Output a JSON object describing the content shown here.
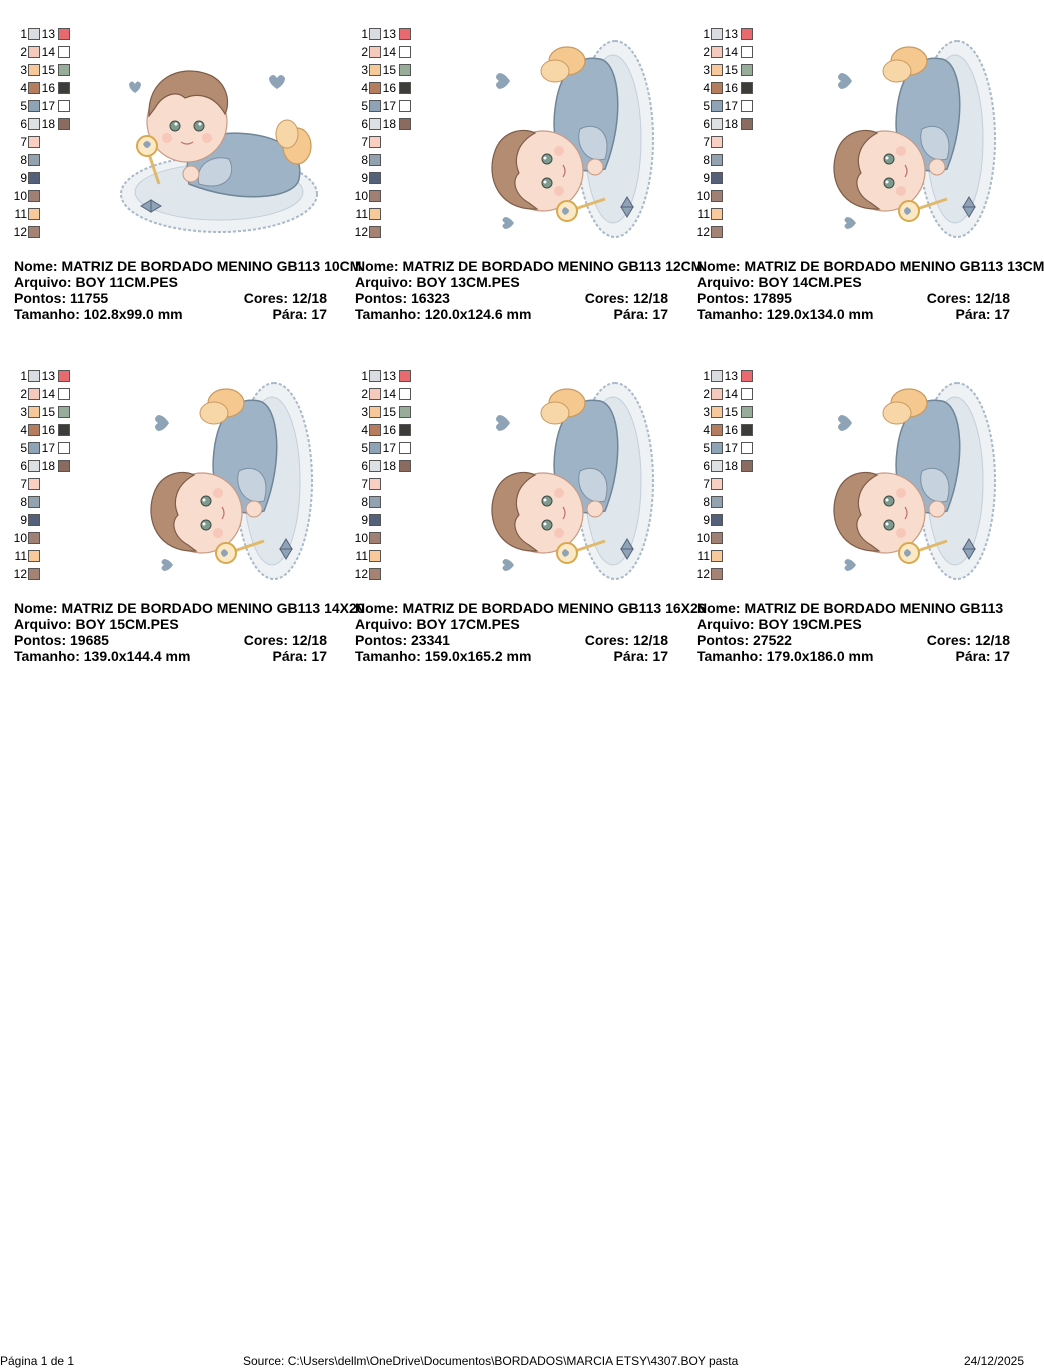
{
  "palette": {
    "labels": [
      "1",
      "2",
      "3",
      "4",
      "5",
      "6",
      "7",
      "8",
      "9",
      "10",
      "11",
      "12",
      "13",
      "14",
      "15",
      "16",
      "17",
      "18"
    ],
    "colors": [
      "#d9dde2",
      "#f6c9bd",
      "#f7c99a",
      "#b57d5d",
      "#8ea3b6",
      "#dde1e4",
      "#f9cfc4",
      "#93a2b1",
      "#55617a",
      "#a08074",
      "#f8c99a",
      "#a68274",
      "#e86a6e",
      "#ffffff",
      "#97ac99",
      "#3d3c38",
      "#ffffff",
      "#8b6a5f"
    ]
  },
  "labels": {
    "name": "Nome:",
    "file": "Arquivo:",
    "stitches": "Pontos:",
    "colors": "Cores:",
    "size": "Tamanho:",
    "stops": "Pára:"
  },
  "designs": [
    {
      "name": "MATRIZ DE BORDADO MENINO GB113 10CM",
      "file": "BOY 11CM.PES",
      "stitches": "11755",
      "colors": "12/18",
      "size": "102.8x99.0 mm",
      "stops": "17",
      "orientation": "landscape"
    },
    {
      "name": "MATRIZ DE BORDADO MENINO GB113 12CM",
      "file": "BOY 13CM.PES",
      "stitches": "16323",
      "colors": "12/18",
      "size": "120.0x124.6 mm",
      "stops": "17",
      "orientation": "rotated"
    },
    {
      "name": "MATRIZ DE BORDADO MENINO GB113 13CM",
      "file": "BOY 14CM.PES",
      "stitches": "17895",
      "colors": "12/18",
      "size": "129.0x134.0 mm",
      "stops": "17",
      "orientation": "rotated"
    },
    {
      "name": "MATRIZ DE BORDADO MENINO GB113 14X20",
      "file": "BOY 15CM.PES",
      "stitches": "19685",
      "colors": "12/18",
      "size": "139.0x144.4 mm",
      "stops": "17",
      "orientation": "rotated"
    },
    {
      "name": "MATRIZ DE BORDADO MENINO GB113 16X26",
      "file": "BOY 17CM.PES",
      "stitches": "23341",
      "colors": "12/18",
      "size": "159.0x165.2 mm",
      "stops": "17",
      "orientation": "rotated"
    },
    {
      "name": "MATRIZ DE BORDADO MENINO GB113",
      "file": "BOY 19CM.PES",
      "stitches": "27522",
      "colors": "12/18",
      "size": "179.0x186.0 mm",
      "stops": "17",
      "orientation": "rotated"
    }
  ],
  "footer": {
    "page": "Página 1 de 1",
    "source": "Source: C:\\Users\\dellm\\OneDrive\\Documentos\\BORDADOS\\MARCIA ETSY\\4307.BOY pasta",
    "date": "24/12/2025"
  }
}
